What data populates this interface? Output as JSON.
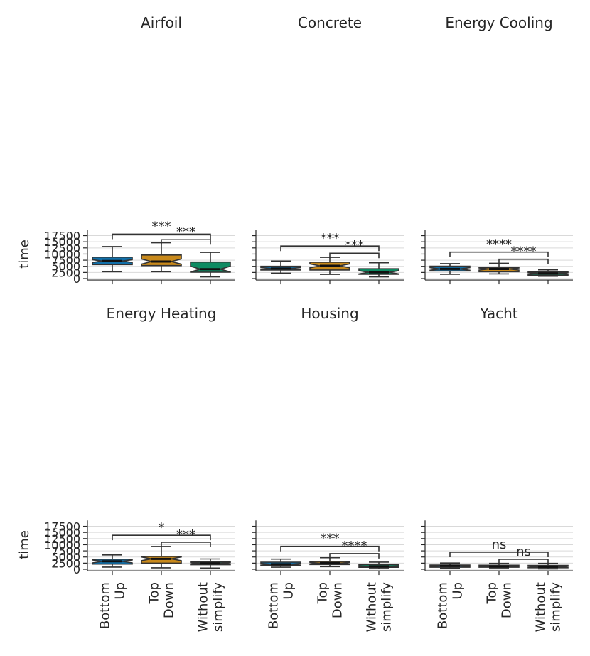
{
  "chart_data": {
    "type": "boxplot",
    "ylabel": "time",
    "yticks": [
      0,
      2500,
      5000,
      7500,
      10000,
      12500,
      15000,
      17500
    ],
    "ylim": [
      -600,
      19900
    ],
    "categories": [
      "Bottom Up",
      "Top Down",
      "Without simplify"
    ],
    "category_lines": [
      [
        "Bottom",
        "Up"
      ],
      [
        "Top",
        "Down"
      ],
      [
        "Without",
        "simplify"
      ]
    ],
    "colors": {
      "Bottom Up": "#1170aa",
      "Top Down": "#c8891b",
      "Without simplify": "#0d8b62"
    },
    "panels": [
      {
        "title": "Airfoil",
        "boxes": [
          {
            "category": "Bottom Up",
            "whislo": 2800,
            "q1": 5700,
            "med": 7150,
            "q3": 8750,
            "whishi": 13050,
            "ci": [
              6600,
              7700
            ]
          },
          {
            "category": "Top Down",
            "whislo": 2800,
            "q1": 5300,
            "med": 6950,
            "q3": 9600,
            "whishi": 14600,
            "ci": [
              5900,
              8000
            ]
          },
          {
            "category": "Without simplify",
            "whislo": 700,
            "q1": 2600,
            "med": 3850,
            "q3": 6750,
            "whishi": 10700,
            "ci": [
              2700,
              5000
            ]
          }
        ],
        "annotations": [
          {
            "pair": [
              0,
              2
            ],
            "y": 18100,
            "label": "***"
          },
          {
            "pair": [
              1,
              2
            ],
            "y": 15850,
            "label": "***"
          }
        ]
      },
      {
        "title": "Concrete",
        "boxes": [
          {
            "category": "Bottom Up",
            "whislo": 2200,
            "q1": 3500,
            "med": 4100,
            "q3": 5000,
            "whishi": 7150,
            "ci": [
              3700,
              4500
            ]
          },
          {
            "category": "Top Down",
            "whislo": 1700,
            "q1": 3500,
            "med": 5200,
            "q3": 6650,
            "whishi": 8650,
            "ci": [
              4400,
              6000
            ]
          },
          {
            "category": "Without simplify",
            "whislo": 700,
            "q1": 1750,
            "med": 2550,
            "q3": 4000,
            "whishi": 6450,
            "ci": [
              1900,
              3200
            ]
          }
        ],
        "annotations": [
          {
            "pair": [
              0,
              2
            ],
            "y": 13250,
            "label": "***"
          },
          {
            "pair": [
              1,
              2
            ],
            "y": 10350,
            "label": "***"
          }
        ]
      },
      {
        "title": "Energy Cooling",
        "boxes": [
          {
            "category": "Bottom Up",
            "whislo": 1750,
            "q1": 3100,
            "med": 3950,
            "q3": 5050,
            "whishi": 6100,
            "ci": [
              3400,
              4500
            ]
          },
          {
            "category": "Top Down",
            "whislo": 1900,
            "q1": 2800,
            "med": 3900,
            "q3": 4550,
            "whishi": 6250,
            "ci": [
              3450,
              4350
            ]
          },
          {
            "category": "Without simplify",
            "whislo": 950,
            "q1": 1400,
            "med": 2100,
            "q3": 2650,
            "whishi": 3550,
            "ci": [
              1800,
              2400
            ]
          }
        ],
        "annotations": [
          {
            "pair": [
              0,
              2
            ],
            "y": 10800,
            "label": "****"
          },
          {
            "pair": [
              1,
              2
            ],
            "y": 7900,
            "label": "****"
          }
        ]
      },
      {
        "title": "Energy Heating",
        "boxes": [
          {
            "category": "Bottom Up",
            "whislo": 900,
            "q1": 2100,
            "med": 3250,
            "q3": 4100,
            "whishi": 5850,
            "ci": [
              2600,
              3800
            ]
          },
          {
            "category": "Top Down",
            "whislo": 600,
            "q1": 2500,
            "med": 4250,
            "q3": 5250,
            "whishi": 9300,
            "ci": [
              3500,
              5000
            ]
          },
          {
            "category": "Without simplify",
            "whislo": 500,
            "q1": 1850,
            "med": 2400,
            "q3": 2950,
            "whishi": 4200,
            "ci": [
              2100,
              2700
            ]
          }
        ],
        "annotations": [
          {
            "pair": [
              0,
              2
            ],
            "y": 13850,
            "label": "*"
          },
          {
            "pair": [
              1,
              2
            ],
            "y": 11000,
            "label": "***"
          }
        ]
      },
      {
        "title": "Housing",
        "boxes": [
          {
            "category": "Bottom Up",
            "whislo": 850,
            "q1": 1500,
            "med": 2050,
            "q3": 2900,
            "whishi": 4150,
            "ci": [
              1700,
              2400
            ]
          },
          {
            "category": "Top Down",
            "whislo": 1050,
            "q1": 1950,
            "med": 2500,
            "q3": 3150,
            "whishi": 4700,
            "ci": [
              2200,
              2800
            ]
          },
          {
            "category": "Without simplify",
            "whislo": 300,
            "q1": 800,
            "med": 1150,
            "q3": 1900,
            "whishi": 2900,
            "ci": [
              950,
              1400
            ]
          }
        ],
        "annotations": [
          {
            "pair": [
              0,
              2
            ],
            "y": 9350,
            "label": "***"
          },
          {
            "pair": [
              1,
              2
            ],
            "y": 6400,
            "label": "****"
          }
        ]
      },
      {
        "title": "Yacht",
        "boxes": [
          {
            "category": "Bottom Up",
            "whislo": 450,
            "q1": 850,
            "med": 1400,
            "q3": 1700,
            "whishi": 2550,
            "ci": [
              1200,
              1600
            ]
          },
          {
            "category": "Top Down",
            "whislo": 550,
            "q1": 850,
            "med": 1150,
            "q3": 1650,
            "whishi": 2400,
            "ci": [
              950,
              1400
            ]
          },
          {
            "category": "Without simplify",
            "whislo": 150,
            "q1": 650,
            "med": 1050,
            "q3": 1600,
            "whishi": 2400,
            "ci": [
              800,
              1300
            ]
          }
        ],
        "annotations": [
          {
            "pair": [
              0,
              2
            ],
            "y": 6950,
            "label": "ns"
          },
          {
            "pair": [
              1,
              2
            ],
            "y": 4050,
            "label": "ns"
          }
        ]
      }
    ]
  }
}
